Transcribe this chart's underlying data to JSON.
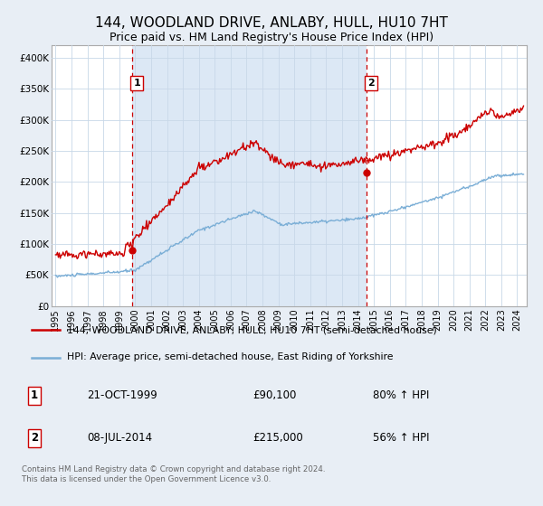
{
  "title": "144, WOODLAND DRIVE, ANLABY, HULL, HU10 7HT",
  "subtitle": "Price paid vs. HM Land Registry's House Price Index (HPI)",
  "title_fontsize": 11,
  "subtitle_fontsize": 9,
  "background_color": "#e8eef5",
  "plot_bg_color": "#ffffff",
  "plot_shade_color": "#dce8f5",
  "grid_color": "#c8d8e8",
  "red_line_color": "#cc0000",
  "blue_line_color": "#7aaed6",
  "sale1_date": "21-OCT-1999",
  "sale1_price": "£90,100",
  "sale1_hpi": "80% ↑ HPI",
  "sale2_date": "08-JUL-2014",
  "sale2_price": "£215,000",
  "sale2_hpi": "56% ↑ HPI",
  "legend_label_red": "144, WOODLAND DRIVE, ANLABY, HULL, HU10 7HT (semi-detached house)",
  "legend_label_blue": "HPI: Average price, semi-detached house, East Riding of Yorkshire",
  "footer": "Contains HM Land Registry data © Crown copyright and database right 2024.\nThis data is licensed under the Open Government Licence v3.0.",
  "ylim": [
    0,
    420000
  ],
  "yticks": [
    0,
    50000,
    100000,
    150000,
    200000,
    250000,
    300000,
    350000,
    400000
  ],
  "ytick_labels": [
    "£0",
    "£50K",
    "£100K",
    "£150K",
    "£200K",
    "£250K",
    "£300K",
    "£350K",
    "£400K"
  ],
  "xlim_start": 1994.75,
  "xlim_end": 2024.6,
  "xticks": [
    1995,
    1996,
    1997,
    1998,
    1999,
    2000,
    2001,
    2002,
    2003,
    2004,
    2005,
    2006,
    2007,
    2008,
    2009,
    2010,
    2011,
    2012,
    2013,
    2014,
    2015,
    2016,
    2017,
    2018,
    2019,
    2020,
    2021,
    2022,
    2023,
    2024
  ],
  "vline1_x": 1999.8,
  "vline2_x": 2014.52,
  "marker1_x": 1999.8,
  "marker1_y": 90100,
  "marker2_x": 2014.52,
  "marker2_y": 215000
}
